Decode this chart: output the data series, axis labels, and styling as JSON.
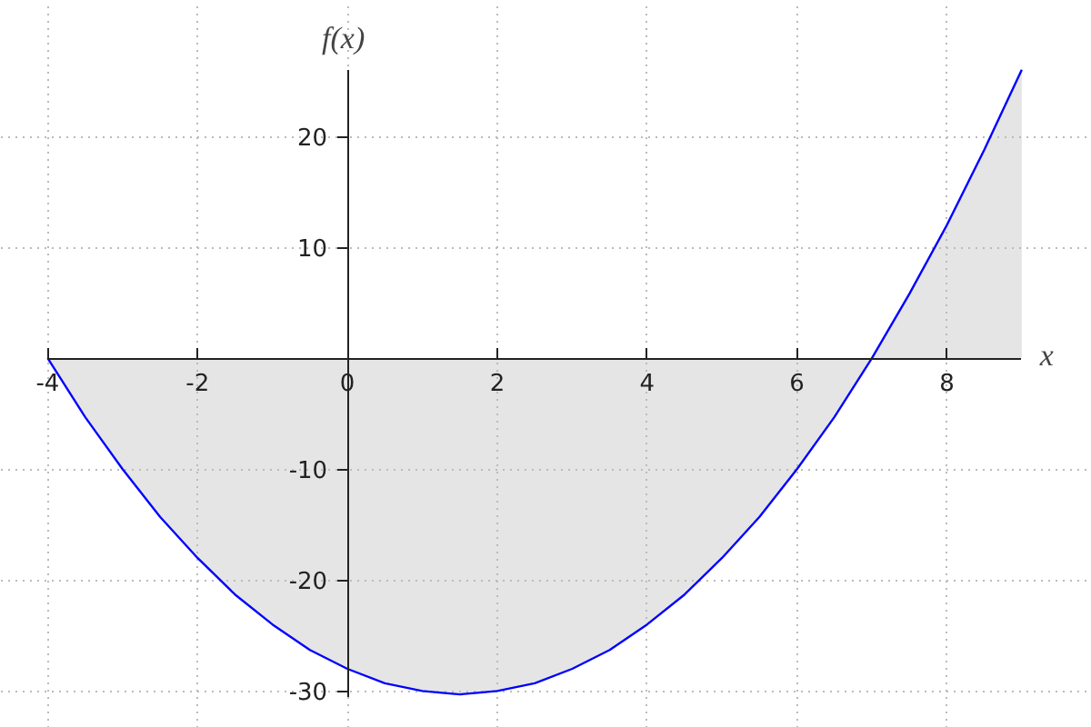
{
  "chart_data": {
    "type": "area",
    "xlabel": "x",
    "ylabel": "f(x)",
    "x": [
      -4,
      -3.5,
      -3,
      -2.5,
      -2,
      -1.5,
      -1,
      -0.5,
      0,
      0.5,
      1,
      1.5,
      2,
      2.5,
      3,
      3.5,
      4,
      4.5,
      5,
      5.5,
      6,
      6.5,
      7,
      7.5,
      8,
      8.5,
      9
    ],
    "series": [
      {
        "color": "#0000ff",
        "values": [
          0,
          -5.3,
          -10,
          -14.3,
          -18,
          -21.3,
          -24,
          -26.3,
          -28,
          -29.3,
          -30,
          -30.3,
          -30,
          -29.3,
          -28,
          -26.3,
          -24,
          -21.3,
          -18,
          -14.3,
          -10,
          -5.3,
          0,
          5.8,
          12,
          18.8,
          26
        ]
      }
    ],
    "xlim": [
      -4,
      9
    ],
    "ylim": [
      -30.5,
      26
    ],
    "xticks": [
      -4,
      -2,
      0,
      2,
      4,
      6,
      8
    ],
    "yticks": [
      -30,
      -20,
      -10,
      10,
      20
    ],
    "grid": true,
    "line_style": "solid"
  }
}
